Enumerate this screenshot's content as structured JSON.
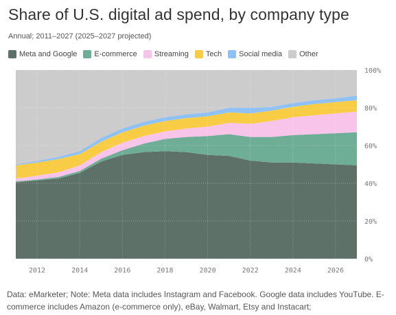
{
  "title": "Share of U.S. digital ad spend, by company type",
  "subtitle": "Annual; 2011–2027 (2025–2027 projected)",
  "note": "Data: eMarketer; Note: Meta data includes Instagram and Facebook. Google data includes YouTube. E-commerce includes Amazon (e-commerce only), eBay, Walmart, Etsy and Instacart;",
  "chart_data": {
    "type": "area",
    "stacked": true,
    "x": [
      2011,
      2012,
      2013,
      2014,
      2015,
      2016,
      2017,
      2018,
      2019,
      2020,
      2021,
      2022,
      2023,
      2024,
      2025,
      2026,
      2027
    ],
    "ylim": [
      0,
      100
    ],
    "y_unit": "%",
    "xlim": [
      2011,
      2027
    ],
    "x_ticks": [
      2012,
      2014,
      2016,
      2018,
      2020,
      2022,
      2024,
      2026
    ],
    "y_ticks": [
      0,
      20,
      40,
      60,
      80,
      100
    ],
    "y_tick_labels": [
      "0%",
      "20%",
      "40%",
      "60%",
      "80%",
      "100%"
    ],
    "grid": true,
    "legend_position": "top",
    "series": [
      {
        "name": "Meta and Google",
        "color": "#5e7169",
        "values": [
          40.5,
          41.5,
          42.5,
          45.5,
          51.5,
          55.0,
          56.5,
          57.0,
          56.5,
          55.0,
          54.5,
          52.0,
          51.0,
          51.0,
          50.5,
          50.0,
          49.5
        ]
      },
      {
        "name": "E-commerce",
        "color": "#6fae96",
        "values": [
          0.5,
          0.5,
          0.8,
          1.0,
          1.5,
          2.5,
          4.5,
          6.5,
          8.0,
          10.0,
          11.5,
          12.5,
          13.5,
          14.5,
          15.5,
          16.5,
          17.5
        ]
      },
      {
        "name": "Streaming",
        "color": "#f9c4ea",
        "values": [
          1.5,
          2.0,
          2.5,
          3.0,
          3.5,
          4.0,
          4.0,
          4.0,
          4.5,
          5.0,
          6.0,
          7.0,
          8.5,
          9.5,
          10.0,
          10.5,
          11.0
        ]
      },
      {
        "name": "Tech",
        "color": "#f8cd45",
        "values": [
          7.0,
          7.0,
          7.0,
          6.0,
          5.5,
          5.5,
          5.5,
          5.5,
          5.5,
          5.5,
          5.5,
          5.5,
          5.5,
          5.5,
          6.0,
          6.0,
          6.0
        ]
      },
      {
        "name": "Social media",
        "color": "#8fc1f5",
        "values": [
          0.5,
          0.8,
          1.2,
          1.5,
          2.0,
          2.0,
          2.0,
          2.0,
          2.0,
          2.0,
          2.5,
          3.0,
          2.0,
          2.0,
          2.0,
          2.0,
          2.5
        ]
      },
      {
        "name": "Other",
        "color": "#cccccc",
        "values": [
          50.0,
          48.2,
          46.0,
          43.0,
          36.0,
          31.0,
          27.5,
          25.0,
          23.5,
          22.5,
          20.0,
          20.0,
          19.5,
          17.5,
          16.0,
          15.0,
          13.5
        ]
      }
    ]
  }
}
